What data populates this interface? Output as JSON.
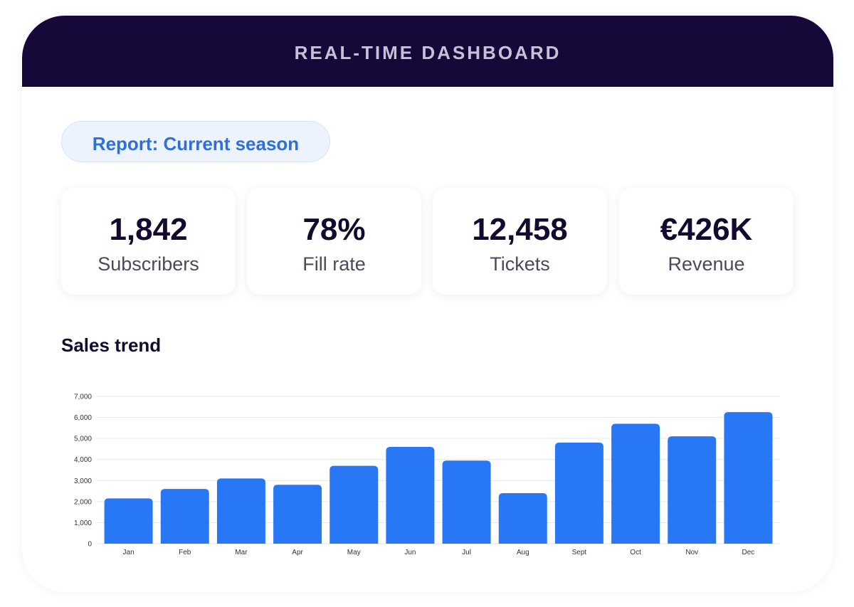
{
  "header": {
    "title": "REAL-TIME DASHBOARD"
  },
  "report": {
    "label": "Report: Current season"
  },
  "stats": [
    {
      "value": "1,842",
      "label": "Subscribers"
    },
    {
      "value": "78%",
      "label": "Fill rate"
    },
    {
      "value": "12,458",
      "label": "Tickets"
    },
    {
      "value": "€426K",
      "label": "Revenue"
    }
  ],
  "sales": {
    "title": "Sales trend"
  },
  "colors": {
    "header_bg": "#17083a",
    "accent": "#2f6fd8",
    "bar": "#2878f5"
  },
  "chart_data": {
    "type": "bar",
    "categories": [
      "Jan",
      "Feb",
      "Mar",
      "Apr",
      "May",
      "Jun",
      "Jul",
      "Aug",
      "Sept",
      "Oct",
      "Nov",
      "Dec"
    ],
    "values": [
      2150,
      2600,
      3100,
      2800,
      3700,
      4600,
      3950,
      2400,
      4800,
      5700,
      5100,
      6250
    ],
    "ylim": [
      0,
      7000
    ],
    "yticks": [
      "0",
      "1,000",
      "2,000",
      "3,000",
      "4,000",
      "5,000",
      "6,000",
      "7,000"
    ],
    "title": "",
    "xlabel": "",
    "ylabel": "",
    "grid": true
  }
}
